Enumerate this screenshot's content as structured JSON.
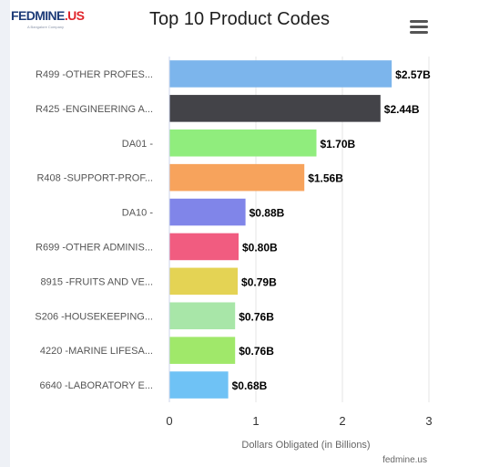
{
  "header": {
    "logo_text": "FEDMINE",
    "logo_dot": ".US",
    "logo_tagline": "A Bangalore Company",
    "menu_icon": "hamburger-menu-icon"
  },
  "credits": "fedmine.us",
  "chart_data": {
    "type": "bar",
    "orientation": "horizontal",
    "title": "Top 10 Product Codes",
    "xlabel": "Dollars Obligated (in Billions)",
    "ylabel": "",
    "xlim": [
      0,
      3
    ],
    "xticks": [
      0,
      1,
      2,
      3
    ],
    "grid": true,
    "legend": "none",
    "categories": [
      "R499 -OTHER PROFES...",
      "R425 -ENGINEERING A...",
      "DA01 -",
      "R408 -SUPPORT-PROF...",
      "DA10 -",
      "R699 -OTHER ADMINIS...",
      "8915 -FRUITS AND VE...",
      "S206 -HOUSEKEEPING...",
      "4220 -MARINE LIFESA...",
      "6640 -LABORATORY E..."
    ],
    "values": [
      2.57,
      2.44,
      1.7,
      1.56,
      0.88,
      0.8,
      0.79,
      0.76,
      0.76,
      0.68
    ],
    "data_labels": [
      "$2.57B",
      "$2.44B",
      "$1.70B",
      "$1.56B",
      "$0.88B",
      "$0.80B",
      "$0.79B",
      "$0.76B",
      "$0.76B",
      "$0.68B"
    ],
    "colors": [
      "#7cb5ec",
      "#434348",
      "#90ed7d",
      "#f7a35c",
      "#8085e9",
      "#f15c80",
      "#e4d354",
      "#a8e6a8",
      "#a0e86a",
      "#6fc2f5"
    ]
  }
}
